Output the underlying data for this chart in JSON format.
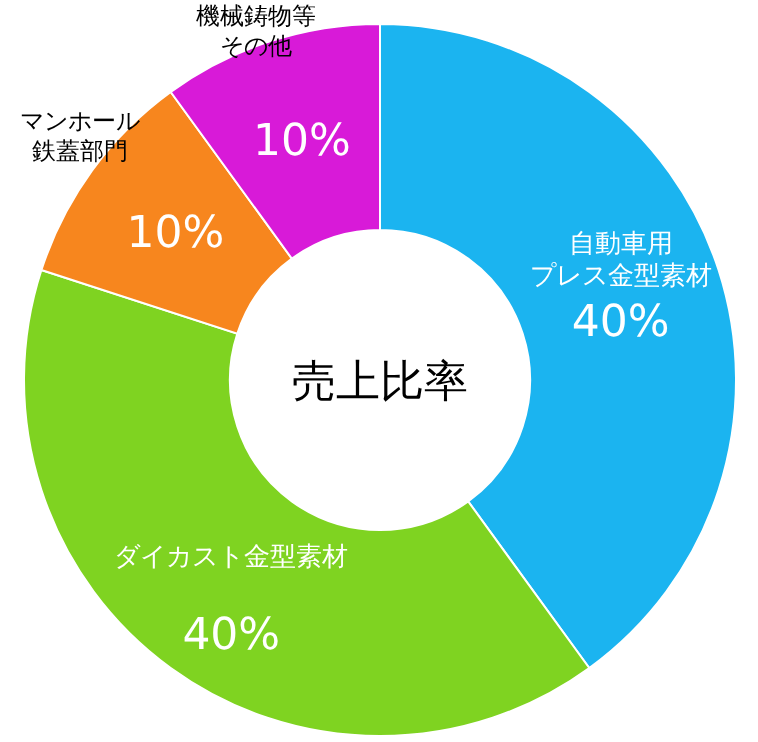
{
  "chart_data": {
    "type": "donut",
    "title": "売上比率",
    "categories": [
      "自動車用プレス金型素材",
      "ダイカスト金型素材",
      "マンホール鉄蓋部門",
      "機械鋳物等その他"
    ],
    "values": [
      40,
      40,
      10,
      10
    ],
    "value_labels": [
      "40%",
      "40%",
      "10%",
      "10%"
    ],
    "colors": [
      "#1bb4f0",
      "#7fd321",
      "#f7861e",
      "#d81ad8"
    ]
  }
}
